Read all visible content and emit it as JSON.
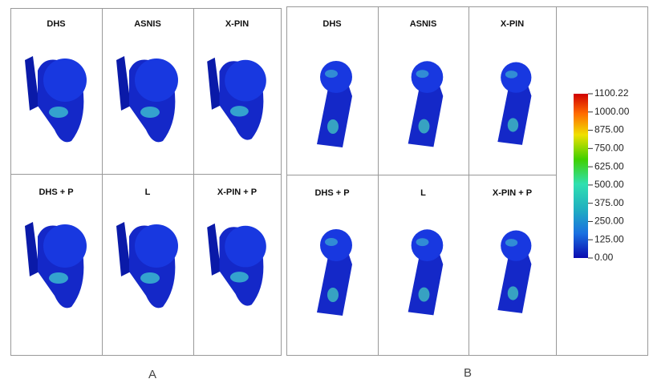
{
  "panels": [
    {
      "label": "A",
      "cells": [
        "DHS",
        "ASNIS",
        "X-PIN",
        "DHS + P",
        "L",
        "X-PIN + P"
      ]
    },
    {
      "label": "B",
      "cells": [
        "DHS",
        "ASNIS",
        "X-PIN",
        "DHS + P",
        "L",
        "X-PIN + P"
      ]
    }
  ],
  "color_scale": {
    "ticks": [
      "1100.22",
      "1000.00",
      "875.00",
      "750.00",
      "625.00",
      "500.00",
      "375.00",
      "250.00",
      "125.00",
      "0.00"
    ]
  }
}
